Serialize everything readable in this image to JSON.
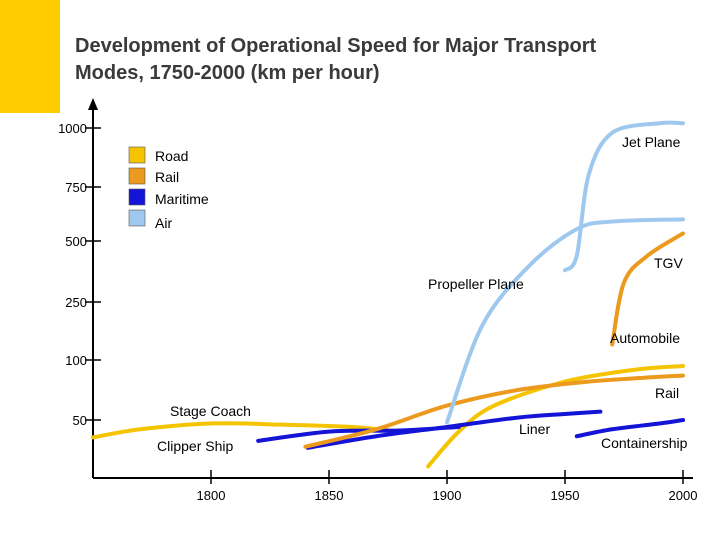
{
  "title_line1": "Development of Operational Speed for Major Transport",
  "title_line2": "Modes, 1750-2000 (km per hour)",
  "colors": {
    "road": "#f5c400",
    "rail": "#ec9a1d",
    "maritime": "#1414d6",
    "air": "#9fc8ef",
    "accent": "#ffcc00",
    "axis": "#000000",
    "text": "#000000"
  },
  "chart_data": {
    "type": "line",
    "title": "Development of Operational Speed for Major Transport Modes, 1750-2000 (km per hour)",
    "y_ticks": [
      "1000",
      "750",
      "500",
      "250",
      "100",
      "50"
    ],
    "x_ticks": [
      "1800",
      "1850",
      "1900",
      "1950",
      "2000"
    ],
    "xlim": [
      1750,
      2000
    ],
    "legend": [
      {
        "label": "Road",
        "key": "road"
      },
      {
        "label": "Rail",
        "key": "rail"
      },
      {
        "label": "Maritime",
        "key": "maritime"
      },
      {
        "label": "Air",
        "key": "air"
      }
    ],
    "annotations": [
      "Jet Plane",
      "TGV",
      "Propeller Plane",
      "Automobile",
      "Rail",
      "Stage Coach",
      "Liner",
      "Clipper Ship",
      "Containership"
    ],
    "series": [
      {
        "name": "Stage Coach",
        "mode": "road",
        "points": [
          [
            1750,
            35
          ],
          [
            1770,
            42
          ],
          [
            1800,
            47
          ],
          [
            1830,
            46
          ],
          [
            1860,
            44
          ],
          [
            1880,
            40
          ]
        ]
      },
      {
        "name": "Automobile",
        "mode": "road",
        "points": [
          [
            1892,
            10
          ],
          [
            1905,
            40
          ],
          [
            1920,
            62
          ],
          [
            1950,
            82
          ],
          [
            1980,
            92
          ],
          [
            2000,
            95
          ]
        ]
      },
      {
        "name": "Clipper Ship",
        "mode": "maritime",
        "points": [
          [
            1820,
            32
          ],
          [
            1850,
            40
          ],
          [
            1880,
            41
          ],
          [
            1905,
            44
          ]
        ]
      },
      {
        "name": "Liner",
        "mode": "maritime",
        "points": [
          [
            1841,
            26
          ],
          [
            1870,
            36
          ],
          [
            1900,
            44
          ],
          [
            1930,
            52
          ],
          [
            1950,
            55
          ],
          [
            1965,
            57
          ]
        ]
      },
      {
        "name": "Containership",
        "mode": "maritime",
        "points": [
          [
            1955,
            36
          ],
          [
            1970,
            42
          ],
          [
            1990,
            47
          ],
          [
            2000,
            50
          ]
        ]
      },
      {
        "name": "Rail",
        "mode": "rail",
        "points": [
          [
            1840,
            27
          ],
          [
            1870,
            42
          ],
          [
            1900,
            62
          ],
          [
            1930,
            75
          ],
          [
            1960,
            82
          ],
          [
            1990,
            86
          ],
          [
            2000,
            87
          ]
        ]
      },
      {
        "name": "TGV",
        "mode": "rail",
        "points": [
          [
            1970,
            140
          ],
          [
            1975,
            330
          ],
          [
            1985,
            440
          ],
          [
            2000,
            535
          ]
        ]
      },
      {
        "name": "Propeller Plane",
        "mode": "air",
        "points": [
          [
            1900,
            48
          ],
          [
            1915,
            190
          ],
          [
            1935,
            400
          ],
          [
            1955,
            555
          ],
          [
            1970,
            590
          ],
          [
            2000,
            600
          ]
        ]
      },
      {
        "name": "Jet Plane",
        "mode": "air",
        "points": [
          [
            1950,
            380
          ],
          [
            1955,
            440
          ],
          [
            1960,
            800
          ],
          [
            1970,
            980
          ],
          [
            1990,
            1020
          ],
          [
            2000,
            1020
          ]
        ]
      }
    ]
  }
}
